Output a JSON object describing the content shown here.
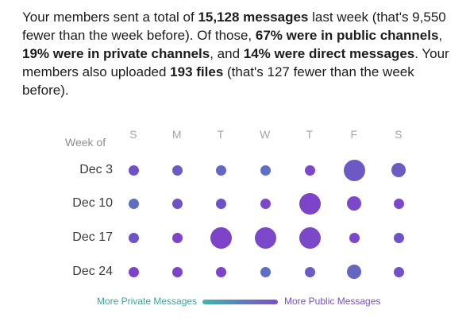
{
  "summary": {
    "t1": "Your members sent a total of ",
    "b1": "15,128 messages",
    "t2": " last week (that's 9,550 fewer than the week before). Of those, ",
    "b2": "67% were in public channels",
    "t3": ", ",
    "b3": "19% were in private channels",
    "t4": ", and ",
    "b4": "14% were direct messages",
    "t5": ". Your members also uploaded ",
    "b5": "193 files",
    "t6": " (that's 127 fewer than the week before)."
  },
  "grid": {
    "week_of_label": "Week of",
    "days": [
      "S",
      "M",
      "T",
      "W",
      "T",
      "F",
      "S"
    ],
    "weeks": [
      "Dec 3",
      "Dec 10",
      "Dec 17",
      "Dec 24"
    ],
    "dots": [
      [
        {
          "size": 1,
          "color": "#6f52c6"
        },
        {
          "size": 1,
          "color": "#6a5cc3"
        },
        {
          "size": 1,
          "color": "#6367c2"
        },
        {
          "size": 1,
          "color": "#5f6fc1"
        },
        {
          "size": 1,
          "color": "#7a48c8"
        },
        {
          "size": 3,
          "color": "#6d59c4"
        },
        {
          "size": 2,
          "color": "#6a5cc3"
        }
      ],
      [
        {
          "size": 1,
          "color": "#5e6ec1"
        },
        {
          "size": 1,
          "color": "#6f52c6"
        },
        {
          "size": 1,
          "color": "#6f52c6"
        },
        {
          "size": 1,
          "color": "#7a48c8"
        },
        {
          "size": 3,
          "color": "#7d44c9"
        },
        {
          "size": 2,
          "color": "#7a48c8"
        },
        {
          "size": 1,
          "color": "#7a48c8"
        }
      ],
      [
        {
          "size": 1,
          "color": "#6f52c6"
        },
        {
          "size": 1,
          "color": "#7d44c9"
        },
        {
          "size": 3,
          "color": "#7d44c9"
        },
        {
          "size": 3,
          "color": "#7a48c8"
        },
        {
          "size": 3,
          "color": "#7a48c8"
        },
        {
          "size": 1,
          "color": "#7a48c8"
        },
        {
          "size": 1,
          "color": "#6f52c6"
        }
      ],
      [
        {
          "size": 1,
          "color": "#7d44c9"
        },
        {
          "size": 1,
          "color": "#7d44c9"
        },
        {
          "size": 1,
          "color": "#7d44c9"
        },
        {
          "size": 1,
          "color": "#5e6ec1"
        },
        {
          "size": 1,
          "color": "#6a5cc3"
        },
        {
          "size": 2,
          "color": "#6367c2"
        },
        {
          "size": 1,
          "color": "#6f52c6"
        }
      ]
    ]
  },
  "legend": {
    "left_label": "More Private Messages",
    "right_label": "More Public Messages",
    "colors": [
      "#3fb6ad",
      "#5d7fc0",
      "#7a4fc6"
    ]
  }
}
